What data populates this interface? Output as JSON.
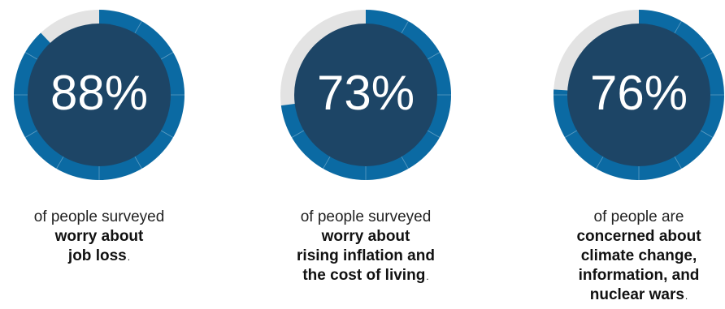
{
  "chart_data": [
    {
      "type": "pie",
      "value_percent": 88,
      "label": "88%",
      "caption_light": "of people surveyed",
      "caption_bold": "worry about\njob loss",
      "caption_end": "."
    },
    {
      "type": "pie",
      "value_percent": 73,
      "label": "73%",
      "caption_light": "of people surveyed",
      "caption_bold": "worry about\nrising inflation and\nthe cost of living",
      "caption_end": "."
    },
    {
      "type": "pie",
      "value_percent": 76,
      "label": "76%",
      "caption_light": "of people are",
      "caption_bold": "concerned about\nclimate change,\ninformation, and\nnuclear wars",
      "caption_end": "."
    }
  ],
  "colors": {
    "filled": "#0b6aa3",
    "remaining": "#e3e3e3",
    "center": "#1d4566",
    "divider": "#ffffff"
  }
}
